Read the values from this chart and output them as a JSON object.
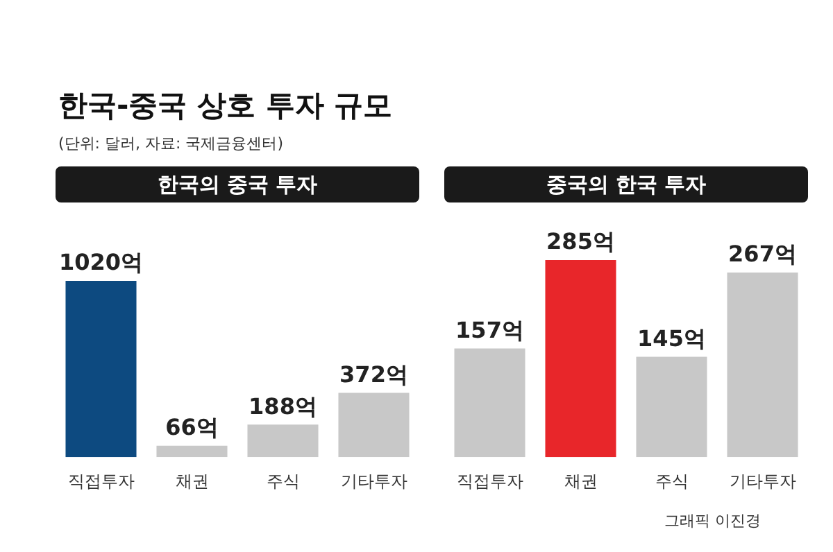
{
  "chart_data": [
    {
      "type": "bar",
      "title": "한국의 중국 투자",
      "annotations": [
        "한국-중국 상호 투자 규모",
        "(단위: 달러, 자료: 국제금융센터)"
      ],
      "categories": [
        "직접투자",
        "채권",
        "주식",
        "기타투자"
      ],
      "values": [
        1020,
        66,
        188,
        372
      ],
      "value_labels": [
        "1020억",
        "66억",
        "188억",
        "372억"
      ],
      "colors": [
        "#0d4a80",
        "#c8c8c8",
        "#c8c8c8",
        "#c8c8c8"
      ],
      "grid": false,
      "legend": false
    },
    {
      "type": "bar",
      "title": "중국의 한국 투자",
      "annotations": [
        "그래픽 이진경"
      ],
      "categories": [
        "직접투자",
        "채권",
        "주식",
        "기타투자"
      ],
      "values": [
        157,
        285,
        145,
        267
      ],
      "value_labels": [
        "157억",
        "285억",
        "145억",
        "267억"
      ],
      "colors": [
        "#c8c8c8",
        "#e8262a",
        "#c8c8c8",
        "#c8c8c8"
      ],
      "grid": false,
      "legend": false
    }
  ]
}
